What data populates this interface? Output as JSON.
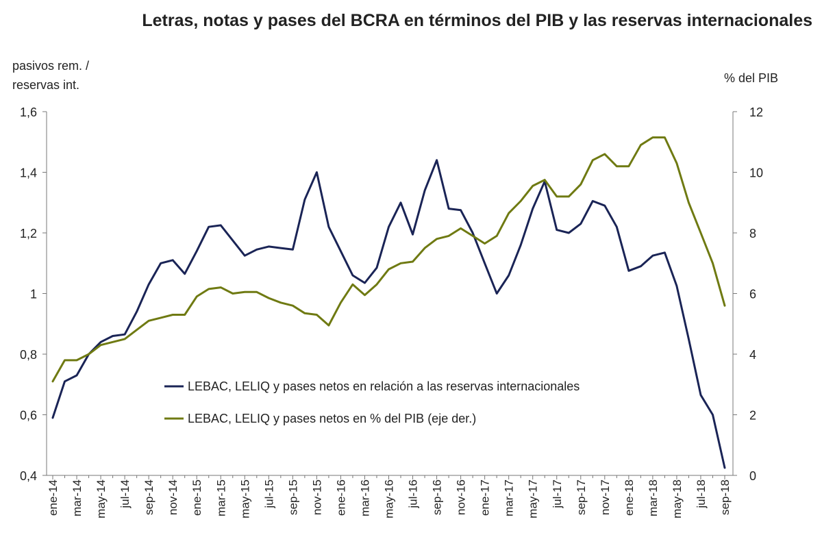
{
  "chart_data": {
    "type": "line",
    "title": "Letras, notas y pases del BCRA en términos del PIB y las reservas internacionales",
    "left_axis_label_line1": "pasivos rem. /",
    "left_axis_label_line2": "reservas int.",
    "right_axis_label": "% del PIB",
    "left_axis": {
      "min": 0.4,
      "max": 1.6,
      "ticks": [
        0.4,
        0.6,
        0.8,
        1.0,
        1.2,
        1.4,
        1.6
      ],
      "tick_labels": [
        "0,4",
        "0,6",
        "0,8",
        "1",
        "1,2",
        "1,4",
        "1,6"
      ]
    },
    "right_axis": {
      "min": 0,
      "max": 12,
      "ticks": [
        0,
        2,
        4,
        6,
        8,
        10,
        12
      ],
      "tick_labels": [
        "0",
        "2",
        "4",
        "6",
        "8",
        "10",
        "12"
      ]
    },
    "x_tick_labels": [
      "ene-14",
      "mar-14",
      "may-14",
      "jul-14",
      "sep-14",
      "nov-14",
      "ene-15",
      "mar-15",
      "may-15",
      "jul-15",
      "sep-15",
      "nov-15",
      "ene-16",
      "mar-16",
      "may-16",
      "jul-16",
      "sep-16",
      "nov-16",
      "ene-17",
      "mar-17",
      "may-17",
      "jul-17",
      "sep-17",
      "nov-17",
      "ene-18",
      "mar-18",
      "may-18",
      "jul-18",
      "sep-18"
    ],
    "grid": false,
    "legend_position": "center",
    "series": [
      {
        "name": "LEBAC, LELIQ y pases netos en relación a las reservas internacionales",
        "axis": "left",
        "color": "#1a2456",
        "values": [
          0.59,
          0.71,
          0.73,
          0.8,
          0.84,
          0.86,
          0.865,
          0.94,
          1.03,
          1.1,
          1.11,
          1.065,
          1.14,
          1.22,
          1.225,
          1.175,
          1.125,
          1.145,
          1.155,
          1.15,
          1.145,
          1.31,
          1.4,
          1.22,
          1.14,
          1.06,
          1.035,
          1.085,
          1.22,
          1.3,
          1.195,
          1.34,
          1.44,
          1.28,
          1.275,
          1.2,
          1.1,
          1.0,
          1.06,
          1.16,
          1.28,
          1.37,
          1.21,
          1.2,
          1.23,
          1.305,
          1.29,
          1.22,
          1.075,
          1.09,
          1.125,
          1.135,
          1.025,
          0.85,
          0.665,
          0.6,
          0.425
        ]
      },
      {
        "name": "LEBAC, LELIQ y pases netos en % del PIB (eje der.)",
        "axis": "right",
        "color": "#6f7a12",
        "values": [
          3.1,
          3.8,
          3.8,
          4.0,
          4.3,
          4.4,
          4.5,
          4.8,
          5.1,
          5.2,
          5.3,
          5.3,
          5.9,
          6.15,
          6.2,
          6.0,
          6.05,
          6.05,
          5.85,
          5.7,
          5.6,
          5.35,
          5.3,
          4.95,
          5.7,
          6.3,
          5.95,
          6.3,
          6.8,
          7.0,
          7.05,
          7.5,
          7.8,
          7.9,
          8.15,
          7.9,
          7.65,
          7.9,
          8.65,
          9.05,
          9.55,
          9.75,
          9.2,
          9.2,
          9.6,
          10.4,
          10.6,
          10.2,
          10.2,
          10.9,
          11.15,
          11.15,
          10.3,
          9.0,
          8.0,
          7.0,
          5.6
        ]
      }
    ]
  }
}
